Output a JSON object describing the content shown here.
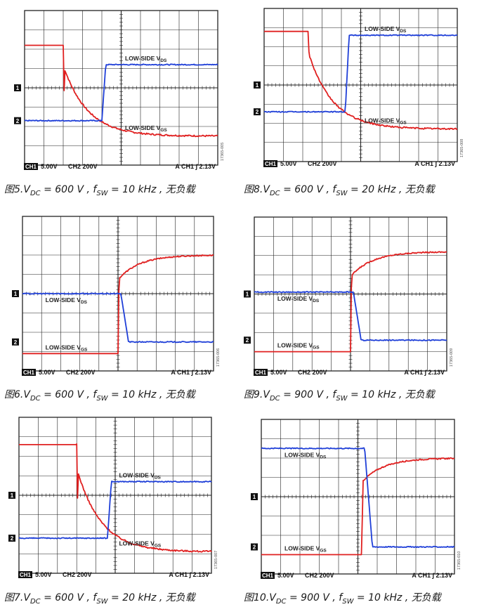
{
  "figure_prefix": "图",
  "caption_parts": {
    "vdc_symbol": "V",
    "vdc_sub": "DC",
    "fsw_symbol": "f",
    "fsw_sub": "SW",
    "eq": " = ",
    "sep": " , ",
    "tail": " , 无负载"
  },
  "channel_markers": [
    "1",
    "2"
  ],
  "status_bar": {
    "ch1_tag": "CH1",
    "ch1_scale": "5.00V",
    "ch2_scale": "CH2 200V",
    "trigger": "A  CH1  ∫  2.13V"
  },
  "trace_label_prefix": "LOW-SIDE V",
  "colors": {
    "vds": "#1f3fd8",
    "vgs": "#e02020",
    "grid": "#222222",
    "dot": "#333333"
  },
  "chart_data": [
    {
      "id": "fig5",
      "type": "line",
      "figure_number": "5.",
      "vdc": "600 V",
      "fsw": "10 kHz",
      "caption": "图5.VDC = 600 V , fSW = 10 kHz , 无负载",
      "watermark": "17365-005",
      "label_pos": "right",
      "transition": "vgs_fall_vds_rise",
      "x_divisions": 10,
      "y_divisions": 8,
      "edge_div": 4.0,
      "t_edge": 2.0,
      "series": [
        {
          "name": "LOW-SIDE VGS",
          "sub": "GS",
          "color": "#e02020",
          "start_div": 6.2,
          "end_div": 1.5
        },
        {
          "name": "LOW-SIDE VDS",
          "sub": "DS",
          "color": "#1f3fd8",
          "start_div": 2.3,
          "end_div": 5.2
        }
      ]
    },
    {
      "id": "fig6",
      "type": "line",
      "figure_number": "6.",
      "vdc": "600 V",
      "fsw": "10 kHz",
      "caption": "图6.VDC = 600 V , fSW = 10 kHz , 无负载",
      "watermark": "17365-006",
      "label_pos": "left",
      "transition": "vgs_rise_vds_fall",
      "x_divisions": 10,
      "y_divisions": 8,
      "edge_div": 5.0,
      "t_edge": 5.0,
      "series": [
        {
          "name": "LOW-SIDE VGS",
          "sub": "GS",
          "color": "#e02020",
          "start_div": 0.9,
          "end_div": 6.0
        },
        {
          "name": "LOW-SIDE VDS",
          "sub": "DS",
          "color": "#1f3fd8",
          "start_div": 4.0,
          "end_div": 1.5
        }
      ]
    },
    {
      "id": "fig7",
      "type": "line",
      "figure_number": "7.",
      "vdc": "600 V",
      "fsw": "20 kHz",
      "caption": "图7.VDC = 600 V , fSW = 20 kHz , 无负载",
      "watermark": "17365-007",
      "label_pos": "right",
      "transition": "vgs_fall_vds_rise",
      "x_divisions": 10,
      "y_divisions": 8,
      "edge_div": 4.6,
      "t_edge": 3.0,
      "series": [
        {
          "name": "LOW-SIDE VGS",
          "sub": "GS",
          "color": "#e02020",
          "start_div": 6.6,
          "end_div": 1.1
        },
        {
          "name": "LOW-SIDE VDS",
          "sub": "DS",
          "color": "#1f3fd8",
          "start_div": 1.8,
          "end_div": 4.7
        }
      ]
    },
    {
      "id": "fig8",
      "type": "line",
      "figure_number": "8.",
      "vdc": "600 V",
      "fsw": "20 kHz",
      "caption": "图8.VDC = 600 V , fSW = 20 kHz , 无负载",
      "watermark": "17365-008",
      "label_pos": "right",
      "transition": "vgs_fall_vds_rise",
      "x_divisions": 10,
      "y_divisions": 8,
      "edge_div": 4.2,
      "t_edge": 2.3,
      "series": [
        {
          "name": "LOW-SIDE VGS",
          "sub": "GS",
          "color": "#e02020",
          "start_div": 6.8,
          "end_div": 1.7
        },
        {
          "name": "LOW-SIDE VDS",
          "sub": "DS",
          "color": "#1f3fd8",
          "start_div": 2.6,
          "end_div": 6.6
        }
      ]
    },
    {
      "id": "fig9",
      "type": "line",
      "figure_number": "9.",
      "vdc": "900 V",
      "fsw": "10 kHz",
      "caption": "图9.VDC = 900 V , fSW = 10 kHz , 无负载",
      "watermark": "17365-009",
      "label_pos": "left",
      "transition": "vgs_rise_vds_fall",
      "x_divisions": 10,
      "y_divisions": 8,
      "edge_div": 5.0,
      "t_edge": 5.0,
      "series": [
        {
          "name": "LOW-SIDE VGS",
          "sub": "GS",
          "color": "#e02020",
          "start_div": 1.0,
          "end_div": 6.2
        },
        {
          "name": "LOW-SIDE VDS",
          "sub": "DS",
          "color": "#1f3fd8",
          "start_div": 4.1,
          "end_div": 1.6
        }
      ]
    },
    {
      "id": "fig10",
      "type": "line",
      "figure_number": "10.",
      "vdc": "900 V",
      "fsw": "10 kHz",
      "caption": "图10.VDC = 900 V , fSW = 10 kHz , 无负载",
      "watermark": "17365-010",
      "label_pos": "left",
      "transition": "vgs_rise_vds_fall",
      "x_divisions": 10,
      "y_divisions": 8,
      "edge_div": 5.2,
      "t_edge": 5.2,
      "series": [
        {
          "name": "LOW-SIDE VGS",
          "sub": "GS",
          "color": "#e02020",
          "start_div": 1.0,
          "end_div": 6.0
        },
        {
          "name": "LOW-SIDE VDS",
          "sub": "DS",
          "color": "#1f3fd8",
          "start_div": 6.5,
          "end_div": 1.4
        }
      ]
    }
  ]
}
